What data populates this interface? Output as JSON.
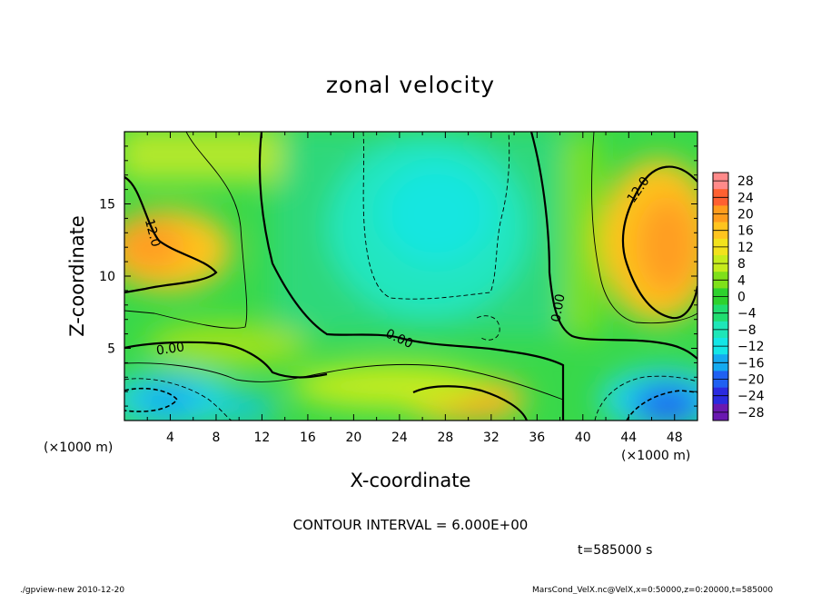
{
  "chart_data": {
    "type": "heatmap",
    "title": "zonal velocity",
    "xlabel": "X-coordinate",
    "ylabel": "Z-coordinate",
    "x_unit": "(×1000 m)",
    "y_unit": "(×1000 m)",
    "xlim": [
      0,
      50
    ],
    "ylim": [
      0,
      20
    ],
    "x_ticks": [
      4,
      8,
      12,
      16,
      20,
      24,
      28,
      32,
      36,
      40,
      44,
      48
    ],
    "y_ticks": [
      5,
      10,
      15
    ],
    "colorbar": {
      "levels": [
        28,
        24,
        20,
        16,
        12,
        8,
        4,
        0,
        -4,
        -8,
        -12,
        -16,
        -20,
        -24,
        -28
      ],
      "colors": [
        "#ff8a8a",
        "#ff6030",
        "#ff9c1c",
        "#ffc41e",
        "#f2e21c",
        "#c6ec1c",
        "#7fe01a",
        "#2ed12e",
        "#20dd70",
        "#1ee6b8",
        "#14e6e6",
        "#14aaf0",
        "#1f60f2",
        "#2a2ae0",
        "#6a18b0"
      ]
    },
    "contour_labels": [
      {
        "text": "12.0",
        "x": 2.5,
        "z": 13.0,
        "rotate": 75
      },
      {
        "text": "12.0",
        "x": 44.8,
        "z": 16.0,
        "rotate": -55
      },
      {
        "text": "0.00",
        "x": 4.0,
        "z": 5.0,
        "rotate": -8
      },
      {
        "text": "0.00",
        "x": 24.0,
        "z": 5.7,
        "rotate": 25
      },
      {
        "text": "0.00",
        "x": 37.8,
        "z": 7.8,
        "rotate": -80
      }
    ],
    "field_features": [
      {
        "x": 3.5,
        "z": 11.5,
        "value": 14
      },
      {
        "x": 46.0,
        "z": 12.5,
        "value": 15
      },
      {
        "x": 28.0,
        "z": 1.3,
        "value": 13
      },
      {
        "x": 26.5,
        "z": 14.5,
        "value": -11
      },
      {
        "x": 3.5,
        "z": 1.5,
        "value": -12
      },
      {
        "x": 46.5,
        "z": 1.0,
        "value": -16
      },
      {
        "x": 13.0,
        "z": 3.5,
        "value": 5
      },
      {
        "x": 25.0,
        "z": 3.0,
        "value": 4
      }
    ],
    "contour_interval_text": "CONTOUR INTERVAL = 6.000E+00",
    "time_text": "t=585000  s"
  },
  "footer": {
    "left": "./gpview-new  2010-12-20",
    "right": "MarsCond_VelX.nc@VelX,x=0:50000,z=0:20000,t=585000"
  }
}
